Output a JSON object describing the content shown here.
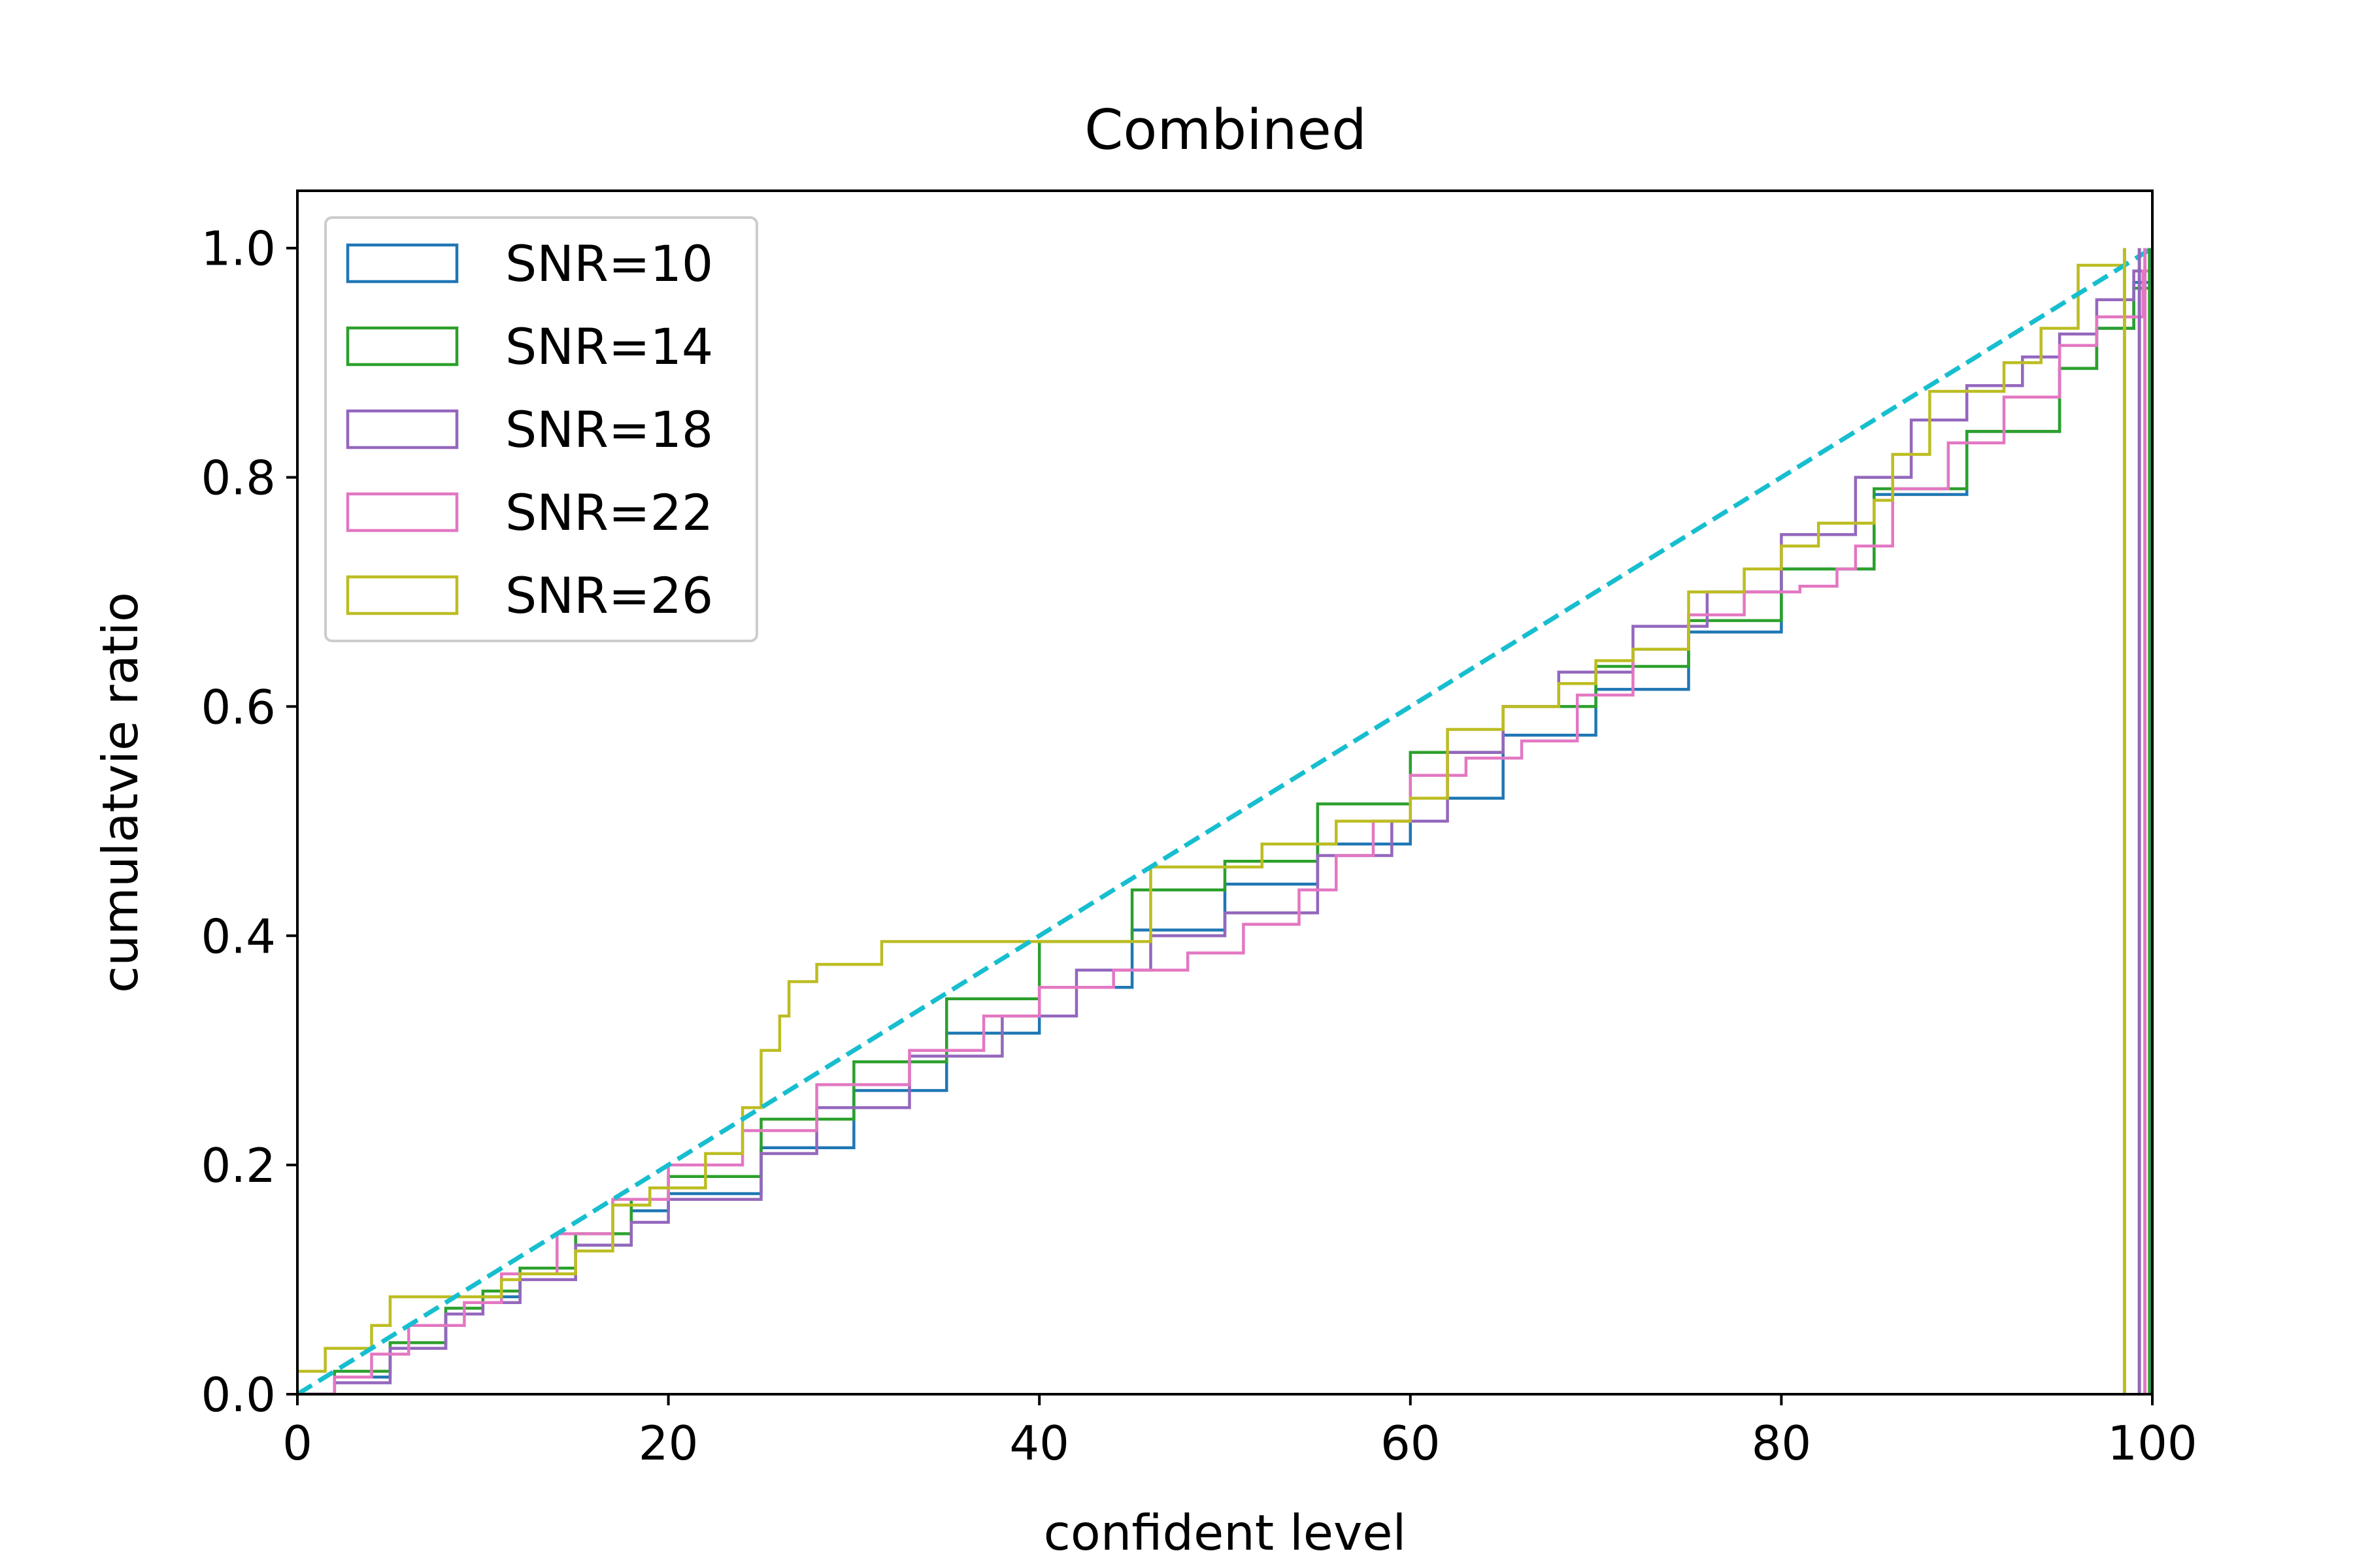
{
  "chart_data": {
    "type": "line",
    "title": "Combined",
    "xlabel": "confident level",
    "ylabel": "cumulatvie ratio",
    "xlim": [
      0,
      100
    ],
    "ylim": [
      0,
      1.05
    ],
    "xticks": [
      "0",
      "20",
      "40",
      "60",
      "80",
      "100"
    ],
    "yticks": [
      "0.0",
      "0.2",
      "0.4",
      "0.6",
      "0.8",
      "1.0"
    ],
    "grid": false,
    "legend_position": "top-left",
    "series": [
      {
        "name": "SNR=10",
        "color": "#1f77b4",
        "step": true,
        "x": [
          0,
          2,
          5,
          8,
          10,
          12,
          15,
          18,
          20,
          25,
          30,
          35,
          40,
          45,
          50,
          55,
          60,
          65,
          70,
          75,
          80,
          85,
          90,
          95,
          97,
          99,
          100
        ],
        "y": [
          0.0,
          0.015,
          0.04,
          0.07,
          0.085,
          0.105,
          0.13,
          0.16,
          0.175,
          0.215,
          0.265,
          0.315,
          0.355,
          0.405,
          0.445,
          0.48,
          0.52,
          0.575,
          0.615,
          0.665,
          0.72,
          0.785,
          0.84,
          0.895,
          0.93,
          0.97,
          1.0
        ]
      },
      {
        "name": "SNR=14",
        "color": "#2ca02c",
        "step": true,
        "x": [
          0,
          2,
          5,
          8,
          10,
          12,
          15,
          18,
          20,
          25,
          30,
          35,
          40,
          45,
          50,
          55,
          60,
          65,
          70,
          75,
          80,
          85,
          90,
          95,
          97,
          99,
          100
        ],
        "y": [
          0.0,
          0.02,
          0.045,
          0.075,
          0.09,
          0.11,
          0.14,
          0.17,
          0.19,
          0.24,
          0.29,
          0.345,
          0.395,
          0.44,
          0.465,
          0.515,
          0.56,
          0.6,
          0.635,
          0.675,
          0.72,
          0.79,
          0.84,
          0.895,
          0.93,
          0.965,
          1.0
        ]
      },
      {
        "name": "SNR=18",
        "color": "#9467bd",
        "step": true,
        "x": [
          0,
          2,
          5,
          8,
          10,
          12,
          15,
          18,
          20,
          25,
          28,
          33,
          38,
          42,
          46,
          50,
          55,
          59,
          62,
          65,
          68,
          72,
          76,
          80,
          84,
          87,
          90,
          93,
          95,
          97,
          99,
          100
        ],
        "y": [
          0.0,
          0.01,
          0.04,
          0.07,
          0.08,
          0.1,
          0.13,
          0.15,
          0.17,
          0.21,
          0.25,
          0.295,
          0.33,
          0.37,
          0.4,
          0.42,
          0.47,
          0.5,
          0.56,
          0.6,
          0.63,
          0.67,
          0.7,
          0.75,
          0.8,
          0.85,
          0.88,
          0.905,
          0.925,
          0.955,
          0.98,
          1.0
        ]
      },
      {
        "name": "SNR=22",
        "color": "#e377c2",
        "step": true,
        "x": [
          0,
          2,
          4,
          6,
          9,
          11,
          14,
          17,
          20,
          24,
          28,
          33,
          37,
          40,
          44,
          48,
          51,
          54,
          56,
          58,
          60,
          63,
          66,
          69,
          72,
          75,
          78,
          81,
          83,
          84,
          86,
          89,
          92,
          95,
          97,
          99.5,
          100
        ],
        "y": [
          0.0,
          0.015,
          0.035,
          0.06,
          0.08,
          0.105,
          0.14,
          0.17,
          0.2,
          0.23,
          0.27,
          0.3,
          0.33,
          0.355,
          0.37,
          0.385,
          0.41,
          0.44,
          0.47,
          0.5,
          0.54,
          0.555,
          0.57,
          0.61,
          0.65,
          0.68,
          0.7,
          0.705,
          0.72,
          0.74,
          0.79,
          0.83,
          0.87,
          0.915,
          0.94,
          0.98,
          1.0
        ]
      },
      {
        "name": "SNR=26",
        "color": "#bcbd22",
        "step": true,
        "x": [
          0,
          1.5,
          4,
          5,
          9,
          11,
          12,
          15,
          17,
          19,
          22,
          24,
          25,
          26,
          26.5,
          28,
          31.5,
          40,
          46,
          52,
          56,
          58,
          60,
          62,
          65,
          68,
          70,
          72,
          75,
          78,
          80,
          82,
          85,
          86,
          88,
          92,
          94,
          96,
          98.5
        ],
        "y": [
          0.02,
          0.04,
          0.06,
          0.085,
          0.085,
          0.1,
          0.105,
          0.125,
          0.165,
          0.18,
          0.21,
          0.25,
          0.3,
          0.33,
          0.36,
          0.375,
          0.395,
          0.395,
          0.46,
          0.48,
          0.5,
          0.5,
          0.52,
          0.58,
          0.6,
          0.62,
          0.64,
          0.65,
          0.7,
          0.72,
          0.74,
          0.76,
          0.78,
          0.82,
          0.875,
          0.9,
          0.93,
          0.985,
          1.0
        ]
      },
      {
        "name": "",
        "color": "#17becf",
        "dashed": true,
        "x": [
          0,
          100
        ],
        "y": [
          0.0,
          1.0
        ]
      }
    ],
    "vertical_lines": [
      {
        "x": 98.5,
        "y": 1.0,
        "color": "#bcbd22"
      },
      {
        "x": 99.3,
        "y": 1.0,
        "color": "#9467bd"
      },
      {
        "x": 99.6,
        "y": 1.0,
        "color": "#e377c2"
      },
      {
        "x": 99.85,
        "y": 1.0,
        "color": "#2ca02c"
      },
      {
        "x": 100,
        "y": 1.0,
        "color": "#1f77b4"
      }
    ]
  }
}
